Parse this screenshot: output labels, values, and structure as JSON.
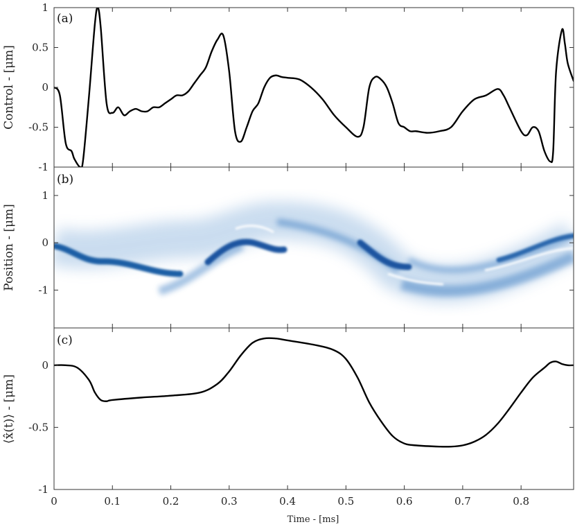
{
  "chart_data": [
    {
      "type": "line",
      "panel_label": "(a)",
      "ylabel": "Control - [μm]",
      "xlim": [
        0,
        0.89
      ],
      "ylim": [
        -1,
        1
      ],
      "yticks": [
        -1,
        -0.5,
        0,
        0.5,
        1
      ],
      "ytick_labels": [
        "-1",
        "-0.5",
        "0",
        "0.5",
        "1"
      ],
      "series": [
        {
          "x": [
            0,
            0.01,
            0.02,
            0.03,
            0.035,
            0.045,
            0.05,
            0.06,
            0.07,
            0.075,
            0.08,
            0.09,
            0.1,
            0.11,
            0.12,
            0.13,
            0.14,
            0.15,
            0.16,
            0.17,
            0.18,
            0.19,
            0.2,
            0.21,
            0.22,
            0.23,
            0.24,
            0.25,
            0.26,
            0.27,
            0.28,
            0.29,
            0.3,
            0.31,
            0.32,
            0.33,
            0.34,
            0.35,
            0.36,
            0.37,
            0.38,
            0.39,
            0.4,
            0.42,
            0.44,
            0.46,
            0.48,
            0.5,
            0.52,
            0.53,
            0.54,
            0.55,
            0.56,
            0.57,
            0.58,
            0.59,
            0.6,
            0.61,
            0.62,
            0.64,
            0.66,
            0.68,
            0.7,
            0.72,
            0.74,
            0.76,
            0.77,
            0.78,
            0.8,
            0.81,
            0.82,
            0.83,
            0.84,
            0.85,
            0.855,
            0.86,
            0.87,
            0.875,
            0.88,
            0.89
          ],
          "y": [
            0,
            -0.1,
            -0.7,
            -0.8,
            -0.9,
            -1.0,
            -0.9,
            -0.1,
            0.8,
            1.0,
            0.75,
            -0.2,
            -0.32,
            -0.25,
            -0.35,
            -0.3,
            -0.27,
            -0.3,
            -0.3,
            -0.25,
            -0.25,
            -0.2,
            -0.15,
            -0.1,
            -0.1,
            -0.05,
            0.05,
            0.15,
            0.25,
            0.45,
            0.6,
            0.65,
            0.2,
            -0.55,
            -0.68,
            -0.5,
            -0.3,
            -0.2,
            0.0,
            0.12,
            0.15,
            0.13,
            0.12,
            0.1,
            0.0,
            -0.15,
            -0.35,
            -0.5,
            -0.62,
            -0.5,
            0.0,
            0.13,
            0.1,
            0.0,
            -0.2,
            -0.45,
            -0.5,
            -0.55,
            -0.55,
            -0.57,
            -0.55,
            -0.5,
            -0.3,
            -0.15,
            -0.1,
            -0.02,
            -0.1,
            -0.25,
            -0.55,
            -0.6,
            -0.5,
            -0.55,
            -0.8,
            -0.93,
            -0.8,
            0.2,
            0.72,
            0.55,
            0.3,
            0.08
          ]
        }
      ]
    },
    {
      "type": "heatmap",
      "panel_label": "(b)",
      "ylabel": "Position - [μm]",
      "xlim": [
        0,
        0.89
      ],
      "ylim": [
        -1.8,
        1.6
      ],
      "yticks": [
        -1,
        0,
        1
      ],
      "ytick_labels": [
        "-1",
        "0",
        "1"
      ],
      "colormap": [
        "#ffffff",
        "#1f5fa5"
      ]
    },
    {
      "type": "line",
      "panel_label": "(c)",
      "ylabel": "⟨x̂(t)⟩ - [μm]",
      "xlabel": "Time - [ms]",
      "xlim": [
        0,
        0.89
      ],
      "ylim": [
        -1,
        0.3
      ],
      "xticks": [
        0,
        0.1,
        0.2,
        0.3,
        0.4,
        0.5,
        0.6,
        0.7,
        0.8
      ],
      "xtick_labels": [
        "0",
        "0.1",
        "0.2",
        "0.3",
        "0.4",
        "0.5",
        "0.6",
        "0.7",
        "0.8"
      ],
      "yticks": [
        -1,
        -0.5,
        0
      ],
      "ytick_labels": [
        "-1",
        "-0.5",
        "0"
      ],
      "series": [
        {
          "x": [
            0,
            0.02,
            0.04,
            0.06,
            0.07,
            0.08,
            0.09,
            0.1,
            0.15,
            0.2,
            0.25,
            0.28,
            0.3,
            0.32,
            0.34,
            0.36,
            0.38,
            0.4,
            0.45,
            0.48,
            0.5,
            0.52,
            0.54,
            0.56,
            0.58,
            0.6,
            0.62,
            0.66,
            0.68,
            0.7,
            0.72,
            0.74,
            0.76,
            0.78,
            0.8,
            0.82,
            0.84,
            0.85,
            0.86,
            0.87,
            0.88,
            0.89
          ],
          "y": [
            0,
            0,
            -0.02,
            -0.12,
            -0.22,
            -0.28,
            -0.29,
            -0.28,
            -0.26,
            -0.245,
            -0.22,
            -0.15,
            -0.05,
            0.08,
            0.18,
            0.215,
            0.215,
            0.2,
            0.16,
            0.12,
            0.05,
            -0.1,
            -0.3,
            -0.45,
            -0.57,
            -0.63,
            -0.645,
            -0.655,
            -0.655,
            -0.645,
            -0.615,
            -0.56,
            -0.47,
            -0.35,
            -0.22,
            -0.1,
            -0.02,
            0.02,
            0.03,
            0.01,
            0.0,
            0.0
          ]
        }
      ]
    }
  ]
}
